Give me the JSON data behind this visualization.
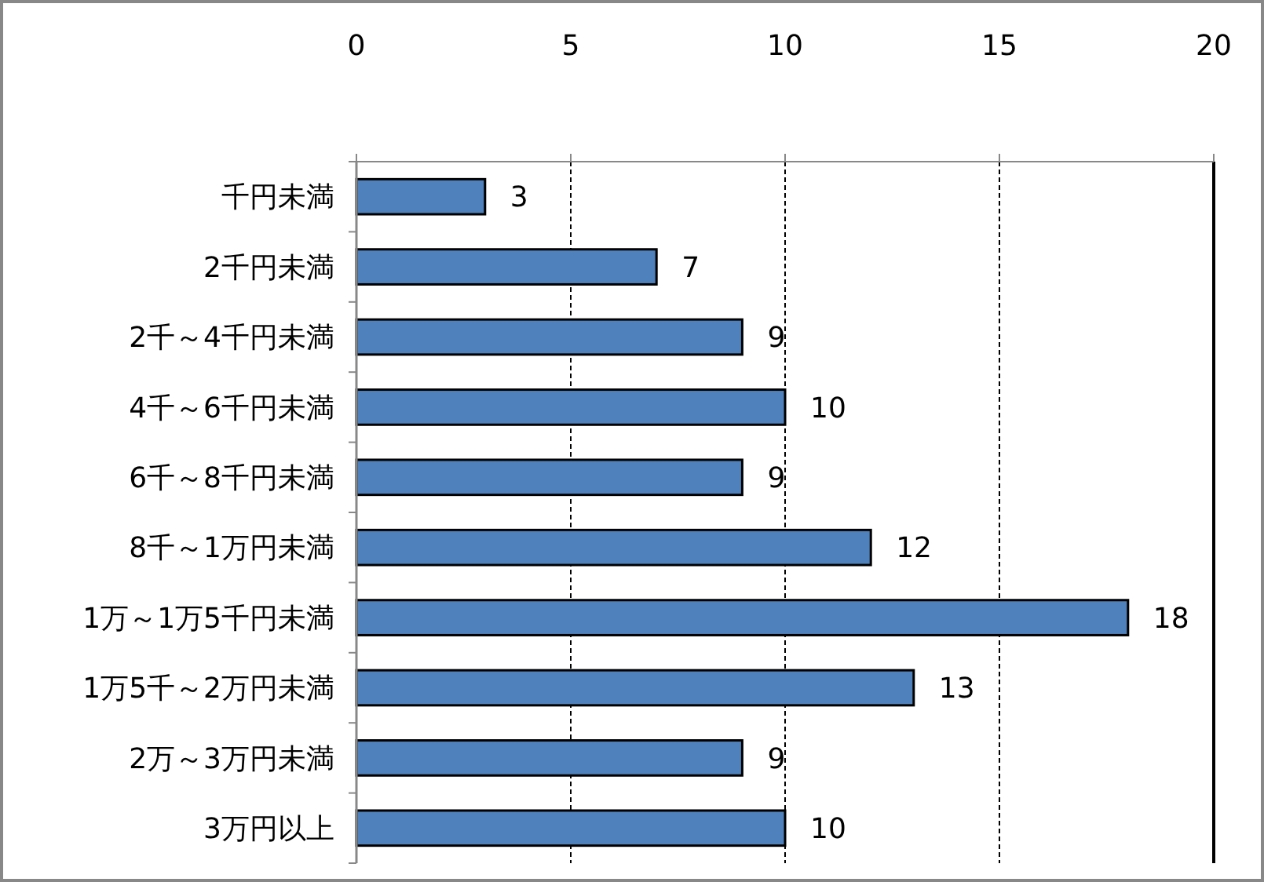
{
  "chart_data": {
    "type": "bar",
    "orientation": "horizontal",
    "categories": [
      "千円未満",
      "2千円未満",
      "2千～4千円未満",
      "4千～6千円未満",
      "6千～8千円未満",
      "8千～1万円未満",
      "1万～1万5千円未満",
      "1万5千～2万円未満",
      "2万～3万円未満",
      "3万円以上"
    ],
    "values": [
      3,
      7,
      9,
      10,
      9,
      12,
      18,
      13,
      9,
      10
    ],
    "color": "#4f81bd",
    "xlim": [
      0,
      20
    ],
    "xticks": [
      0,
      5,
      10,
      15,
      20
    ],
    "grid": "x",
    "data_labels": true
  }
}
